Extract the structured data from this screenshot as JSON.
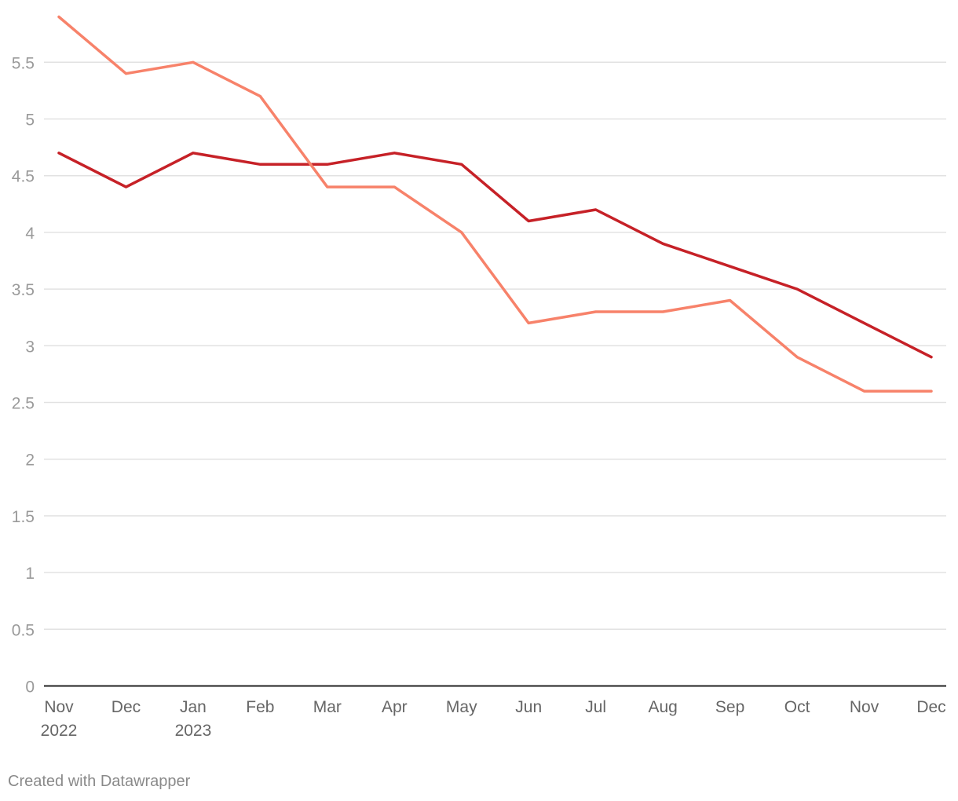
{
  "chart_data": {
    "type": "line",
    "x": [
      "Nov 2022",
      "Dec 2022",
      "Jan 2023",
      "Feb 2023",
      "Mar 2023",
      "Apr 2023",
      "May 2023",
      "Jun 2023",
      "Jul 2023",
      "Aug 2023",
      "Sep 2023",
      "Oct 2023",
      "Nov 2023",
      "Dec 2023"
    ],
    "tick_labels": [
      {
        "line1": "Nov",
        "line2": "2022"
      },
      {
        "line1": "Dec",
        "line2": ""
      },
      {
        "line1": "Jan",
        "line2": "2023"
      },
      {
        "line1": "Feb",
        "line2": ""
      },
      {
        "line1": "Mar",
        "line2": ""
      },
      {
        "line1": "Apr",
        "line2": ""
      },
      {
        "line1": "May",
        "line2": ""
      },
      {
        "line1": "Jun",
        "line2": ""
      },
      {
        "line1": "Jul",
        "line2": ""
      },
      {
        "line1": "Aug",
        "line2": ""
      },
      {
        "line1": "Sep",
        "line2": ""
      },
      {
        "line1": "Oct",
        "line2": ""
      },
      {
        "line1": "Nov",
        "line2": ""
      },
      {
        "line1": "Dec",
        "line2": ""
      }
    ],
    "series": [
      {
        "color": "#c62127",
        "values": [
          4.7,
          4.4,
          4.7,
          4.6,
          4.6,
          4.7,
          4.6,
          4.1,
          4.2,
          3.9,
          3.7,
          3.5,
          3.2,
          2.9
        ]
      },
      {
        "color": "#f7826a",
        "values": [
          5.9,
          5.4,
          5.5,
          5.2,
          4.4,
          4.4,
          4.0,
          3.2,
          3.3,
          3.3,
          3.4,
          2.9,
          2.6,
          2.6
        ]
      }
    ],
    "yticks": [
      "0",
      "0.5",
      "1",
      "1.5",
      "2",
      "2.5",
      "3",
      "3.5",
      "4",
      "4.5",
      "5",
      "5.5"
    ],
    "ylim": [
      0,
      5.9
    ],
    "grid": true,
    "title": "",
    "xlabel": "",
    "ylabel": ""
  },
  "footer": {
    "credit": "Created with Datawrapper"
  }
}
